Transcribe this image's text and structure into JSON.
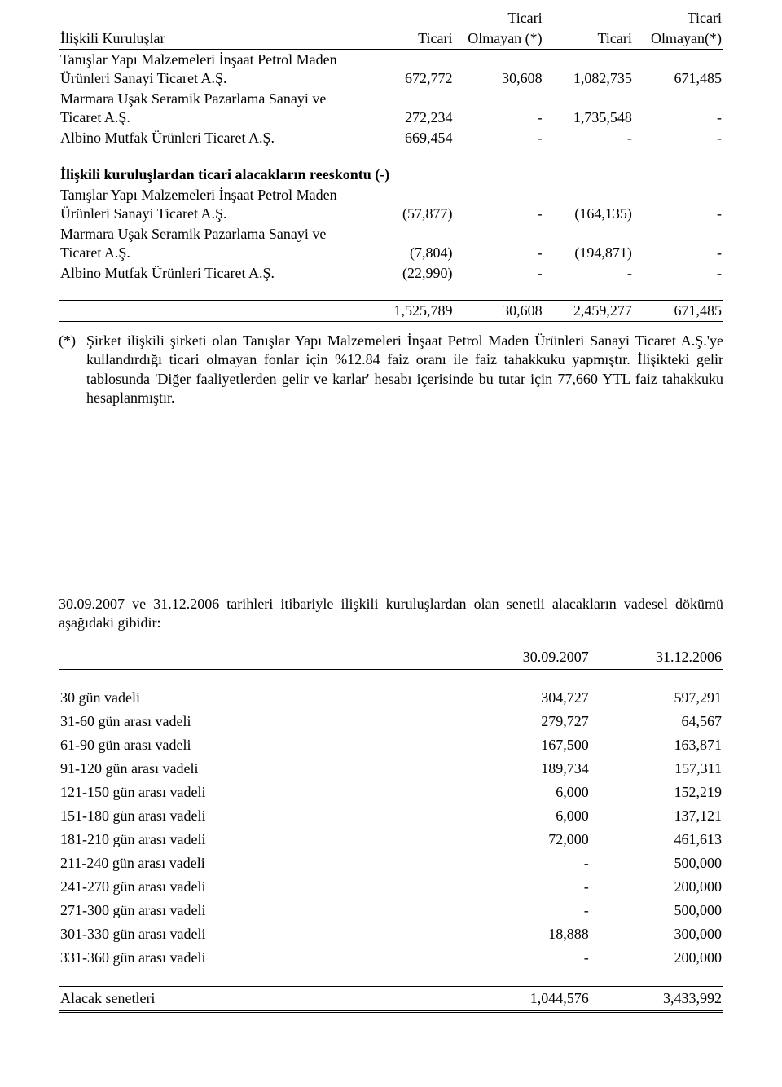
{
  "table1": {
    "header": {
      "left": "İlişkili Kuruluşlar",
      "c1a": "Ticari",
      "c2a": "Ticari",
      "c2b": "Olmayan (*)",
      "c3a": "Ticari",
      "c4a": "Ticari",
      "c4b": "Olmayan(*)"
    },
    "rows1": [
      {
        "label": "Tanışlar Yapı Malzemeleri İnşaat Petrol Maden Ürünleri Sanayi Ticaret A.Ş.",
        "v": [
          "672,772",
          "30,608",
          "1,082,735",
          "671,485"
        ]
      },
      {
        "label": "Marmara Uşak Seramik Pazarlama Sanayi ve Ticaret A.Ş.",
        "v": [
          "272,234",
          "-",
          "1,735,548",
          "-"
        ]
      },
      {
        "label": "Albino Mutfak Ürünleri Ticaret A.Ş.",
        "v": [
          "669,454",
          "-",
          "-",
          "-"
        ]
      }
    ],
    "sub_heading": "İlişkili kuruluşlardan ticari alacakların reeskontu (-)",
    "rows2": [
      {
        "label": "Tanışlar Yapı Malzemeleri İnşaat Petrol Maden Ürünleri Sanayi Ticaret A.Ş.",
        "v": [
          "(57,877)",
          "-",
          "(164,135)",
          "-"
        ]
      },
      {
        "label": "Marmara Uşak Seramik Pazarlama Sanayi ve Ticaret A.Ş.",
        "v": [
          "(7,804)",
          "-",
          "(194,871)",
          "-"
        ]
      },
      {
        "label": "Albino Mutfak Ürünleri Ticaret A.Ş.",
        "v": [
          "(22,990)",
          "-",
          "-",
          "-"
        ]
      }
    ],
    "totals": [
      "1,525,789",
      "30,608",
      "2,459,277",
      "671,485"
    ]
  },
  "footnote": {
    "mark": "(*)",
    "text": "Şirket ilişkili şirketi olan Tanışlar Yapı Malzemeleri İnşaat Petrol Maden Ürünleri Sanayi Ticaret A.Ş.'ye kullandırdığı ticari olmayan fonlar için %12.84 faiz oranı ile faiz tahakkuku yapmıştır. İlişikteki gelir tablosunda 'Diğer faaliyetlerden gelir ve karlar' hesabı içerisinde bu tutar için 77,660 YTL faiz tahakkuku hesaplanmıştır."
  },
  "paragraph2": "30.09.2007 ve 31.12.2006 tarihleri itibariyle ilişkili kuruluşlardan olan senetli alacakların vadesel dökümü aşağıdaki gibidir:",
  "table2": {
    "header": [
      "30.09.2007",
      "31.12.2006"
    ],
    "rows": [
      {
        "label": "30 gün vadeli",
        "v": [
          "304,727",
          "597,291"
        ]
      },
      {
        "label": "31-60 gün arası vadeli",
        "v": [
          "279,727",
          "64,567"
        ]
      },
      {
        "label": "61-90 gün arası vadeli",
        "v": [
          "167,500",
          "163,871"
        ]
      },
      {
        "label": "91-120 gün arası vadeli",
        "v": [
          "189,734",
          "157,311"
        ]
      },
      {
        "label": "121-150 gün arası vadeli",
        "v": [
          "6,000",
          "152,219"
        ]
      },
      {
        "label": "151-180 gün arası vadeli",
        "v": [
          "6,000",
          "137,121"
        ]
      },
      {
        "label": "181-210 gün arası vadeli",
        "v": [
          "72,000",
          "461,613"
        ]
      },
      {
        "label": "211-240 gün arası vadeli",
        "v": [
          "-",
          "500,000"
        ]
      },
      {
        "label": "241-270 gün arası vadeli",
        "v": [
          "-",
          "200,000"
        ]
      },
      {
        "label": "271-300 gün arası vadeli",
        "v": [
          "-",
          "500,000"
        ]
      },
      {
        "label": "301-330 gün arası vadeli",
        "v": [
          "18,888",
          "300,000"
        ]
      },
      {
        "label": "331-360 gün arası vadeli",
        "v": [
          "-",
          "200,000"
        ]
      }
    ],
    "total_label": "Alacak senetleri",
    "totals": [
      "1,044,576",
      "3,433,992"
    ]
  }
}
